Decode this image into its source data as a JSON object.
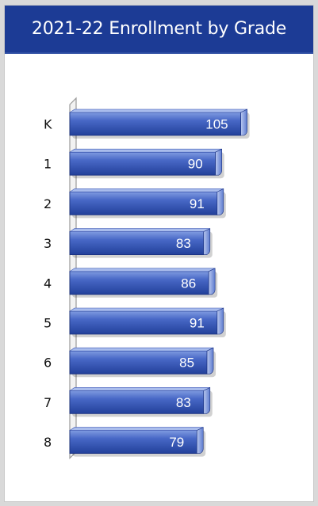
{
  "title": "2021-22 Enrollment by Grade",
  "colors": {
    "header": "#1c3b95",
    "bar_top": "#6f8fd8",
    "bar_mid": "#3e5fc0",
    "bar_bottom": "#23419a",
    "axis": "#9a9a9a"
  },
  "chart_data": {
    "type": "bar",
    "orientation": "horizontal",
    "title": "2021-22 Enrollment by Grade",
    "categories": [
      "K",
      "1",
      "2",
      "3",
      "4",
      "5",
      "6",
      "7",
      "8"
    ],
    "values": [
      105,
      90,
      91,
      83,
      86,
      91,
      85,
      83,
      79
    ],
    "xlim": [
      0,
      125
    ],
    "grid": false,
    "legend": "none",
    "data_labels": true
  }
}
